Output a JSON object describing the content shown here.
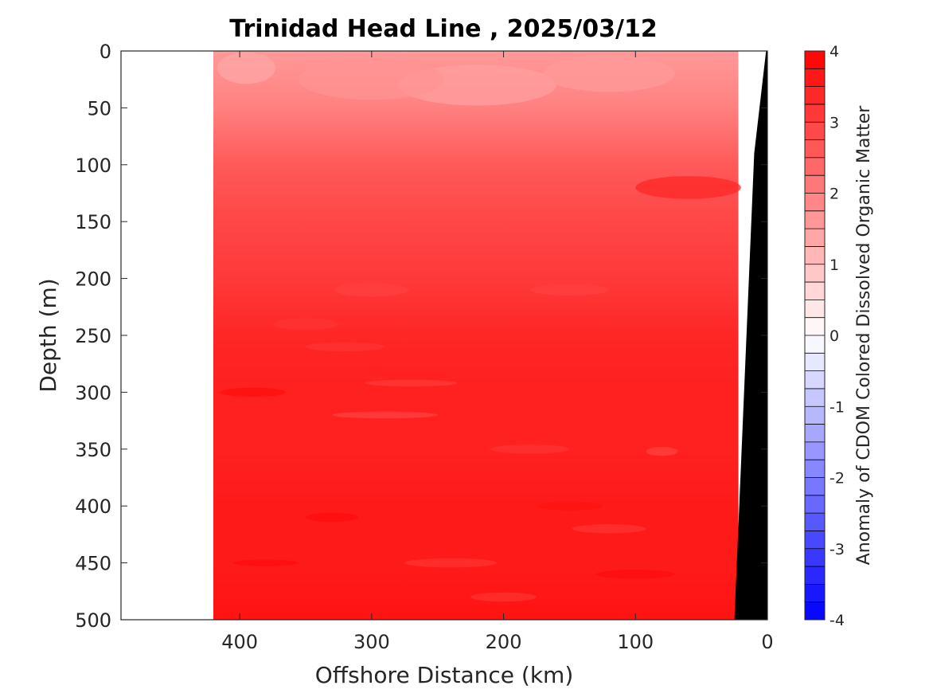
{
  "chart_data": {
    "type": "heatmap",
    "title": "Trinidad Head Line , 2025/03/12",
    "xlabel": "Offshore Distance (km)",
    "ylabel": "Depth (m)",
    "xlim": [
      490,
      0
    ],
    "ylim": [
      0,
      500
    ],
    "x_ticks": [
      400,
      300,
      200,
      100,
      0
    ],
    "y_ticks": [
      0,
      50,
      100,
      150,
      200,
      250,
      300,
      350,
      400,
      450,
      500
    ],
    "data_extent_x": [
      420,
      22
    ],
    "colorbar": {
      "label": "Anomaly of CDOM Colored Dissolved Organic Matter",
      "range": [
        -4,
        4
      ],
      "ticks": [
        4,
        3,
        2,
        1,
        0,
        -1,
        -2,
        -3,
        -4
      ],
      "levels": 32,
      "low_color": "#0000ff",
      "mid_color": "#ffffff",
      "high_color": "#ff0000"
    },
    "depth_profile": {
      "depths": [
        0,
        50,
        100,
        150,
        200,
        250,
        300,
        350,
        400,
        450,
        500
      ],
      "anomaly": [
        1.6,
        2.0,
        2.6,
        2.9,
        3.1,
        3.4,
        3.5,
        3.5,
        3.6,
        3.6,
        3.7
      ]
    },
    "bathymetry": {
      "distance_km": [
        1,
        10,
        25,
        25,
        1
      ],
      "depth_m": [
        0,
        90,
        500,
        500,
        500
      ],
      "color": "#000000"
    }
  }
}
